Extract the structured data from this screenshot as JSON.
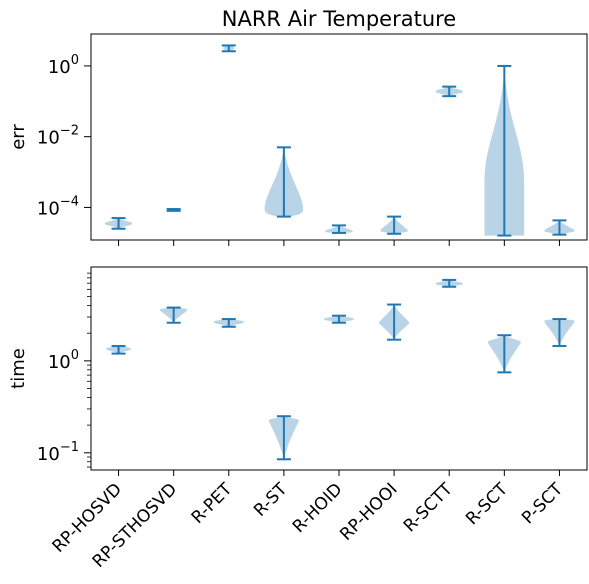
{
  "chart_data": {
    "type": "violin",
    "title": "NARR Air Temperature",
    "categories": [
      "RP-HOSVD",
      "RP-STHOSVD",
      "R-PET",
      "R-ST",
      "R-HOID",
      "RP-HOOI",
      "R-SCTT",
      "R-SCT",
      "P-SCT"
    ],
    "accent_color": "#1f77b4",
    "body_color": "#aecde3",
    "panels": [
      {
        "ylabel": "err",
        "scale": "log",
        "ylim": [
          1.2e-05,
          8
        ],
        "ticks": [
          {
            "base": "10",
            "exp": "0"
          },
          {
            "base": "10",
            "exp": "−2"
          },
          {
            "base": "10",
            "exp": "−4"
          }
        ],
        "tick_values": [
          1,
          0.01,
          0.0001
        ],
        "minor_ticks": false,
        "x_tick_labels": false,
        "violins": [
          {
            "min": 2.5e-05,
            "max": 5e-05,
            "widest": 3.5e-05,
            "width": 0.5,
            "skew": 0
          },
          {
            "min": 8e-05,
            "max": 9e-05,
            "widest": 8.5e-05,
            "width": 0.2,
            "skew": 0
          },
          {
            "min": 2.6,
            "max": 3.8,
            "widest": 3.2,
            "width": 0.2,
            "skew": 0
          },
          {
            "min": 5.5e-05,
            "max": 0.005,
            "widest": 0.0001,
            "width": 0.7,
            "skew": 1
          },
          {
            "min": 1.9e-05,
            "max": 3.1e-05,
            "widest": 2.1e-05,
            "width": 0.5,
            "skew": 0
          },
          {
            "min": 1.8e-05,
            "max": 5.5e-05,
            "widest": 2.2e-05,
            "width": 0.5,
            "skew": 0
          },
          {
            "min": 0.14,
            "max": 0.26,
            "widest": 0.19,
            "width": 0.5,
            "skew": 0
          },
          {
            "min": 1.6e-05,
            "max": 1.0,
            "widest": 0.001,
            "width": 0.72,
            "skew": 2
          },
          {
            "min": 1.7e-05,
            "max": 4.3e-05,
            "widest": 2.2e-05,
            "width": 0.55,
            "skew": 0
          }
        ]
      },
      {
        "ylabel": "time",
        "scale": "log",
        "ylim": [
          0.065,
          10.5
        ],
        "ticks": [
          {
            "base": "10",
            "exp": "0"
          },
          {
            "base": "10",
            "exp": "−1"
          }
        ],
        "tick_values": [
          1,
          0.1
        ],
        "minor_ticks": true,
        "x_tick_labels": true,
        "violins": [
          {
            "min": 1.2,
            "max": 1.45,
            "widest": 1.35,
            "width": 0.45,
            "skew": 0
          },
          {
            "min": 2.6,
            "max": 3.8,
            "widest": 3.6,
            "width": 0.5,
            "skew": 0
          },
          {
            "min": 2.35,
            "max": 2.85,
            "widest": 2.65,
            "width": 0.55,
            "skew": 0
          },
          {
            "min": 0.085,
            "max": 0.25,
            "widest": 0.225,
            "width": 0.55,
            "skew": 0
          },
          {
            "min": 2.6,
            "max": 3.1,
            "widest": 2.85,
            "width": 0.55,
            "skew": 0
          },
          {
            "min": 1.7,
            "max": 4.1,
            "widest": 2.6,
            "width": 0.55,
            "skew": 0
          },
          {
            "min": 6.4,
            "max": 7.6,
            "widest": 6.9,
            "width": 0.5,
            "skew": 0
          },
          {
            "min": 0.75,
            "max": 1.9,
            "widest": 1.6,
            "width": 0.6,
            "skew": 0
          },
          {
            "min": 1.45,
            "max": 2.85,
            "widest": 2.7,
            "width": 0.55,
            "skew": 0
          }
        ]
      }
    ]
  }
}
